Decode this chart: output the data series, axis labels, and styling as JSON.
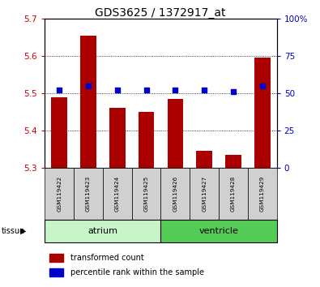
{
  "title": "GDS3625 / 1372917_at",
  "samples": [
    "GSM119422",
    "GSM119423",
    "GSM119424",
    "GSM119425",
    "GSM119426",
    "GSM119427",
    "GSM119428",
    "GSM119429"
  ],
  "transformed_count": [
    5.49,
    5.655,
    5.46,
    5.45,
    5.485,
    5.345,
    5.335,
    5.595
  ],
  "percentile_rank": [
    52,
    55,
    52,
    52,
    52,
    52,
    51,
    55
  ],
  "ylim_left": [
    5.3,
    5.7
  ],
  "ylim_right": [
    0,
    100
  ],
  "yticks_left": [
    5.3,
    5.4,
    5.5,
    5.6,
    5.7
  ],
  "yticks_right": [
    0,
    25,
    50,
    75,
    100
  ],
  "groups": [
    {
      "label": "atrium",
      "indices": [
        0,
        1,
        2,
        3
      ],
      "color": "#c8f5c8"
    },
    {
      "label": "ventricle",
      "indices": [
        4,
        5,
        6,
        7
      ],
      "color": "#66dd66"
    }
  ],
  "bar_color": "#aa0000",
  "dot_color": "#0000cc",
  "bar_bottom": 5.3,
  "tick_label_color_left": "#cc0000",
  "tick_label_color_right": "#0000cc",
  "atrium_color": "#c8f5c8",
  "ventricle_color": "#55cc55",
  "legend_items": [
    {
      "color": "#aa0000",
      "label": "transformed count"
    },
    {
      "color": "#0000cc",
      "label": "percentile rank within the sample"
    }
  ]
}
